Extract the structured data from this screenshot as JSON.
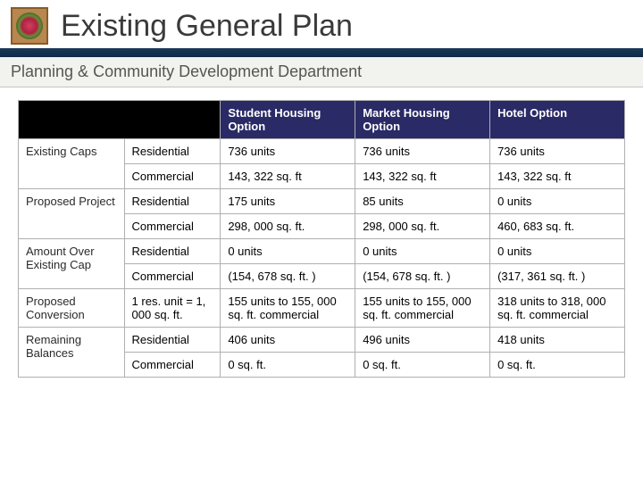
{
  "header": {
    "title": "Existing General Plan",
    "subtitle": "Planning & Community Development Department"
  },
  "colors": {
    "header_band": "#1a3a5a",
    "table_header_bg": "#2a2a66",
    "corner_bg": "#000000",
    "border": "#b0b0b0",
    "subtitle_bg": "#f2f2ee"
  },
  "table": {
    "columns": [
      "Student Housing Option",
      "Market Housing Option",
      "Hotel Option"
    ],
    "rows": [
      {
        "group": "Existing Caps",
        "sub": "Residential",
        "c": [
          "736 units",
          "736 units",
          "736 units"
        ]
      },
      {
        "group": "",
        "sub": "Commercial",
        "c": [
          "143, 322 sq. ft",
          "143, 322 sq. ft",
          "143, 322 sq. ft"
        ]
      },
      {
        "group": "Proposed Project",
        "sub": "Residential",
        "c": [
          "175 units",
          "85 units",
          "0 units"
        ]
      },
      {
        "group": "",
        "sub": "Commercial",
        "c": [
          "298, 000 sq. ft.",
          "298, 000 sq. ft.",
          "460, 683 sq. ft."
        ]
      },
      {
        "group": "Amount Over Existing Cap",
        "sub": "Residential",
        "c": [
          "0 units",
          "0 units",
          "0 units"
        ]
      },
      {
        "group": "",
        "sub": "Commercial",
        "c": [
          "(154, 678 sq. ft. )",
          "(154, 678 sq. ft. )",
          "(317, 361 sq. ft. )"
        ]
      },
      {
        "group": "Proposed Conversion",
        "sub": "1 res. unit = 1, 000 sq. ft.",
        "c": [
          "155 units  to 155, 000 sq. ft. commercial",
          "155 units  to 155, 000 sq. ft. commercial",
          "318 units to 318, 000 sq. ft. commercial"
        ]
      },
      {
        "group": "Remaining Balances",
        "sub": "Residential",
        "c": [
          "406 units",
          "496 units",
          "418 units"
        ]
      },
      {
        "group": "",
        "sub": "Commercial",
        "c": [
          "0 sq. ft.",
          "0 sq. ft.",
          "0 sq. ft."
        ]
      }
    ]
  }
}
